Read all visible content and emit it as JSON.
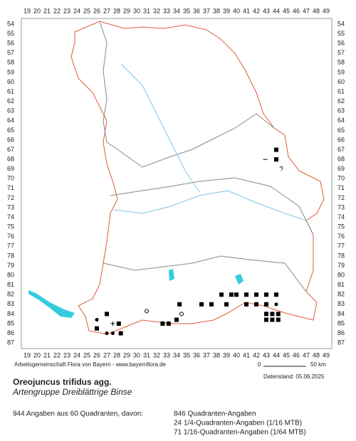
{
  "map": {
    "columns": [
      19,
      20,
      21,
      22,
      23,
      24,
      25,
      26,
      27,
      28,
      29,
      30,
      31,
      32,
      33,
      34,
      35,
      36,
      37,
      38,
      39,
      40,
      41,
      42,
      43,
      44,
      45,
      46,
      47,
      48,
      49
    ],
    "rows": [
      54,
      55,
      56,
      57,
      58,
      59,
      60,
      61,
      62,
      63,
      64,
      65,
      66,
      67,
      68,
      69,
      70,
      71,
      72,
      73,
      74,
      75,
      76,
      77,
      78,
      79,
      80,
      81,
      82,
      83,
      84,
      85,
      86,
      87
    ],
    "markers": [
      {
        "x": 44,
        "y": 67,
        "kind": "square"
      },
      {
        "x": 44,
        "y": 68,
        "kind": "square"
      },
      {
        "x": 42.9,
        "y": 68,
        "kind": "dash"
      },
      {
        "x": 44.5,
        "y": 69,
        "kind": "question"
      },
      {
        "x": 38.5,
        "y": 82,
        "kind": "square"
      },
      {
        "x": 39.5,
        "y": 82,
        "kind": "square"
      },
      {
        "x": 40,
        "y": 82,
        "kind": "square"
      },
      {
        "x": 41,
        "y": 82,
        "kind": "square"
      },
      {
        "x": 42,
        "y": 82,
        "kind": "square"
      },
      {
        "x": 43,
        "y": 82,
        "kind": "square"
      },
      {
        "x": 44,
        "y": 82,
        "kind": "square"
      },
      {
        "x": 34.3,
        "y": 83,
        "kind": "square"
      },
      {
        "x": 36.5,
        "y": 83,
        "kind": "square"
      },
      {
        "x": 37.5,
        "y": 83,
        "kind": "square"
      },
      {
        "x": 39,
        "y": 83,
        "kind": "square"
      },
      {
        "x": 41,
        "y": 83,
        "kind": "square"
      },
      {
        "x": 42,
        "y": 83,
        "kind": "square"
      },
      {
        "x": 43,
        "y": 83,
        "kind": "square"
      },
      {
        "x": 44,
        "y": 83,
        "kind": "dot"
      },
      {
        "x": 27,
        "y": 84,
        "kind": "square"
      },
      {
        "x": 34.5,
        "y": 84,
        "kind": "circle"
      },
      {
        "x": 31,
        "y": 83.7,
        "kind": "circle"
      },
      {
        "x": 43,
        "y": 84,
        "kind": "square"
      },
      {
        "x": 43.6,
        "y": 84,
        "kind": "square"
      },
      {
        "x": 44.2,
        "y": 84,
        "kind": "square"
      },
      {
        "x": 26,
        "y": 84.6,
        "kind": "dot"
      },
      {
        "x": 27.6,
        "y": 85,
        "kind": "plus"
      },
      {
        "x": 28.2,
        "y": 85,
        "kind": "square"
      },
      {
        "x": 32.6,
        "y": 85,
        "kind": "square"
      },
      {
        "x": 33.2,
        "y": 85,
        "kind": "square"
      },
      {
        "x": 34,
        "y": 84.6,
        "kind": "square"
      },
      {
        "x": 43,
        "y": 84.6,
        "kind": "square"
      },
      {
        "x": 43.6,
        "y": 84.6,
        "kind": "square"
      },
      {
        "x": 44.2,
        "y": 84.6,
        "kind": "square"
      },
      {
        "x": 26,
        "y": 85.5,
        "kind": "square"
      },
      {
        "x": 27,
        "y": 86,
        "kind": "dot"
      },
      {
        "x": 27.6,
        "y": 86,
        "kind": "dot"
      },
      {
        "x": 28.4,
        "y": 86,
        "kind": "square"
      }
    ]
  },
  "footer": {
    "credit": "Arbeitsgemeinschaft Flora von Bayern - www.bayernflora.de",
    "scale_start": "0",
    "scale_end": "50 km",
    "date": "Datenstand: 05.06.2025"
  },
  "species": {
    "name": "Oreojuncus trifidus agg.",
    "common": "Artengruppe Dreiblättrige Binse"
  },
  "stats": {
    "summary": "944 Angaben aus 60 Quadranten, davon:",
    "lines": [
      "846 Quadranten-Angaben",
      "24 1/4-Quadranten-Angaben (1/16 MTB)",
      "71 1/16-Quadranten-Angaben (1/64 MTB)"
    ]
  }
}
